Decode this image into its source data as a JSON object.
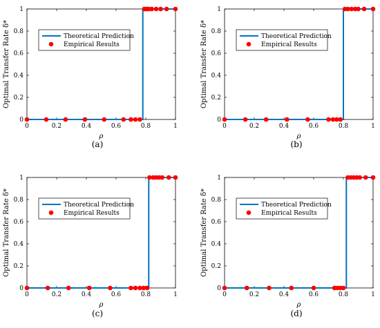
{
  "colors": {
    "theory_line": "#0072BD",
    "empirical_points": "#FF0000",
    "axes": "#000000",
    "background": "#FFFFFF"
  },
  "chart_data": [
    {
      "type": "line",
      "caption": "(a)",
      "xlabel": "ρ",
      "ylabel": "Optimal Transfer Rate δ*",
      "xlim": [
        0,
        1
      ],
      "ylim": [
        0,
        1
      ],
      "xticks": [
        "0",
        "0.2",
        "0.4",
        "0.6",
        "0.8",
        "1"
      ],
      "yticks": [
        "0",
        "0.2",
        "0.4",
        "0.6",
        "0.8",
        "1"
      ],
      "grid": false,
      "legend": {
        "placement": "upper-left",
        "entries": [
          "Theoretical Prediction",
          "Empirical Results"
        ]
      },
      "series": [
        {
          "name": "Theoretical Prediction",
          "kind": "step-line",
          "x": [
            0,
            0.78,
            0.78,
            1
          ],
          "y": [
            0,
            0,
            1,
            1
          ]
        },
        {
          "name": "Empirical Results",
          "kind": "scatter",
          "x": [
            0,
            0.13,
            0.26,
            0.39,
            0.52,
            0.65,
            0.7,
            0.73,
            0.76,
            0.79,
            0.8,
            0.81,
            0.82,
            0.84,
            0.87,
            0.9,
            0.94,
            1.0
          ],
          "y": [
            0,
            0,
            0,
            0,
            0,
            0,
            0,
            0,
            0,
            1,
            1,
            1,
            1,
            1,
            1,
            1,
            1,
            1
          ]
        }
      ]
    },
    {
      "type": "line",
      "caption": "(b)",
      "xlabel": "ρ",
      "ylabel": "Optimal Transfer Rate δ*",
      "xlim": [
        0,
        1
      ],
      "ylim": [
        0,
        1
      ],
      "xticks": [
        "0",
        "0.2",
        "0.4",
        "0.6",
        "0.8",
        "1"
      ],
      "yticks": [
        "0",
        "0.2",
        "0.4",
        "0.6",
        "0.8",
        "1"
      ],
      "grid": false,
      "legend": {
        "placement": "upper-left",
        "entries": [
          "Theoretical Prediction",
          "Empirical Results"
        ]
      },
      "series": [
        {
          "name": "Theoretical Prediction",
          "kind": "step-line",
          "x": [
            0,
            0.8,
            0.8,
            1
          ],
          "y": [
            0,
            0,
            1,
            1
          ]
        },
        {
          "name": "Empirical Results",
          "kind": "scatter",
          "x": [
            0,
            0.14,
            0.28,
            0.42,
            0.56,
            0.7,
            0.73,
            0.755,
            0.78,
            0.81,
            0.83,
            0.855,
            0.88,
            0.9,
            0.94,
            1.0
          ],
          "y": [
            0,
            0,
            0,
            0,
            0,
            0,
            0,
            0,
            0,
            1,
            1,
            1,
            1,
            1,
            1,
            1
          ]
        }
      ]
    },
    {
      "type": "line",
      "caption": "(c)",
      "xlabel": "ρ",
      "ylabel": "Optimal Transfer Rate δ*",
      "xlim": [
        0,
        1
      ],
      "ylim": [
        0,
        1
      ],
      "xticks": [
        "0",
        "0.2",
        "0.4",
        "0.6",
        "0.8",
        "1"
      ],
      "yticks": [
        "0",
        "0.2",
        "0.4",
        "0.6",
        "0.8",
        "1"
      ],
      "grid": false,
      "legend": {
        "placement": "upper-left",
        "entries": [
          "Theoretical Prediction",
          "Empirical Results"
        ]
      },
      "series": [
        {
          "name": "Theoretical Prediction",
          "kind": "step-line",
          "x": [
            0,
            0.82,
            0.82,
            1
          ],
          "y": [
            0,
            0,
            1,
            1
          ]
        },
        {
          "name": "Empirical Results",
          "kind": "scatter",
          "x": [
            0,
            0.14,
            0.28,
            0.42,
            0.56,
            0.7,
            0.73,
            0.76,
            0.785,
            0.81,
            0.825,
            0.85,
            0.87,
            0.89,
            0.91,
            0.955,
            1.0
          ],
          "y": [
            0,
            0,
            0,
            0,
            0,
            0,
            0,
            0,
            0,
            0,
            1,
            1,
            1,
            1,
            1,
            1,
            1
          ]
        }
      ]
    },
    {
      "type": "line",
      "caption": "(d)",
      "xlabel": "ρ",
      "ylabel": "Optimal Transfer Rate δ*",
      "xlim": [
        0,
        1
      ],
      "ylim": [
        0,
        1
      ],
      "xticks": [
        "0",
        "0.2",
        "0.4",
        "0.6",
        "0.8",
        "1"
      ],
      "yticks": [
        "0",
        "0.2",
        "0.4",
        "0.6",
        "0.8",
        "1"
      ],
      "grid": false,
      "legend": {
        "placement": "upper-left",
        "entries": [
          "Theoretical Prediction",
          "Empirical Results"
        ]
      },
      "series": [
        {
          "name": "Theoretical Prediction",
          "kind": "step-line",
          "x": [
            0,
            0.82,
            0.82,
            1
          ],
          "y": [
            0,
            0,
            1,
            1
          ]
        },
        {
          "name": "Empirical Results",
          "kind": "scatter",
          "x": [
            0,
            0.15,
            0.3,
            0.45,
            0.6,
            0.74,
            0.76,
            0.78,
            0.8,
            0.83,
            0.85,
            0.87,
            0.89,
            0.91,
            0.95,
            1.0
          ],
          "y": [
            0,
            0,
            0,
            0,
            0,
            0,
            0,
            0,
            0,
            1,
            1,
            1,
            1,
            1,
            1,
            1
          ]
        }
      ]
    }
  ]
}
